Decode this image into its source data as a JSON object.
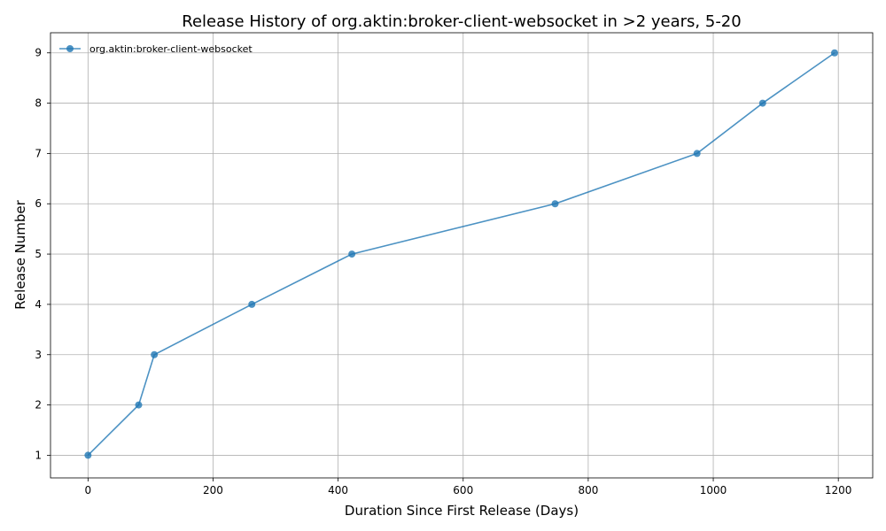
{
  "chart_data": {
    "type": "line",
    "title": "Release History of org.aktin:broker-client-websocket in >2 years, 5-20",
    "xlabel": "Duration Since First Release (Days)",
    "ylabel": "Release Number",
    "xlim": [
      -60,
      1255
    ],
    "ylim": [
      0.55,
      9.4
    ],
    "xticks": [
      0,
      200,
      400,
      600,
      800,
      1000,
      1200
    ],
    "yticks": [
      1,
      2,
      3,
      4,
      5,
      6,
      7,
      8,
      9
    ],
    "grid": true,
    "legend_position": "top-left",
    "series": [
      {
        "name": "org.aktin:broker-client-websocket",
        "color": "#1f77b4",
        "marker": "circle",
        "x": [
          0,
          81,
          106,
          262,
          422,
          747,
          974,
          1079,
          1194
        ],
        "y": [
          1,
          2,
          3,
          4,
          5,
          6,
          7,
          8,
          9
        ]
      }
    ]
  }
}
